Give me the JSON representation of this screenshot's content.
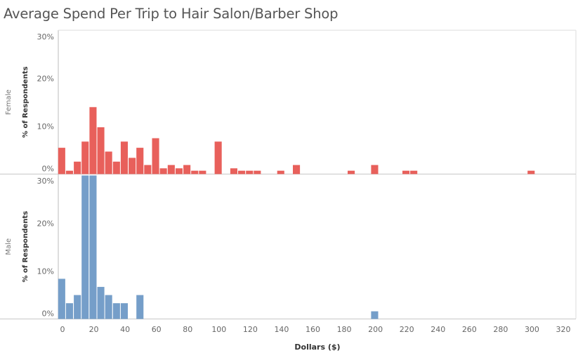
{
  "title": "Average Spend Per Trip to Hair Salon/Barber Shop",
  "colors": {
    "female": "#e8605b",
    "male": "#759ec9"
  },
  "chart_data": {
    "type": "bar",
    "title": "Average Spend Per Trip to Hair Salon/Barber Shop",
    "xlabel": "Dollars ($)",
    "ylabel": "% of Respondents",
    "xlim": [
      0,
      320
    ],
    "ylim": [
      0,
      30
    ],
    "bin_width": 5,
    "grid": false,
    "x_ticks": [
      0,
      20,
      40,
      60,
      80,
      100,
      120,
      140,
      160,
      180,
      200,
      220,
      240,
      260,
      280,
      300,
      320
    ],
    "y_ticks": [
      0,
      10,
      20,
      30
    ],
    "tick_suffix": "%",
    "series": [
      {
        "name": "Female",
        "x": [
          0,
          5,
          10,
          15,
          20,
          25,
          30,
          35,
          40,
          45,
          50,
          55,
          60,
          65,
          70,
          75,
          80,
          85,
          90,
          100,
          110,
          115,
          120,
          125,
          140,
          150,
          185,
          200,
          220,
          225,
          300
        ],
        "values": [
          5.5,
          0.7,
          2.6,
          6.8,
          14.0,
          9.8,
          4.7,
          2.6,
          6.8,
          3.4,
          5.5,
          1.9,
          7.5,
          1.2,
          1.9,
          1.2,
          1.9,
          0.7,
          0.7,
          6.8,
          1.2,
          0.7,
          0.7,
          0.7,
          0.7,
          1.9,
          0.7,
          1.9,
          0.7,
          0.7,
          0.7
        ]
      },
      {
        "name": "Male",
        "x": [
          0,
          5,
          10,
          15,
          20,
          25,
          30,
          35,
          40,
          50,
          200
        ],
        "values": [
          8.4,
          3.3,
          5.0,
          30.0,
          30.0,
          6.7,
          5.0,
          3.3,
          3.3,
          5.0,
          1.6
        ]
      }
    ]
  }
}
